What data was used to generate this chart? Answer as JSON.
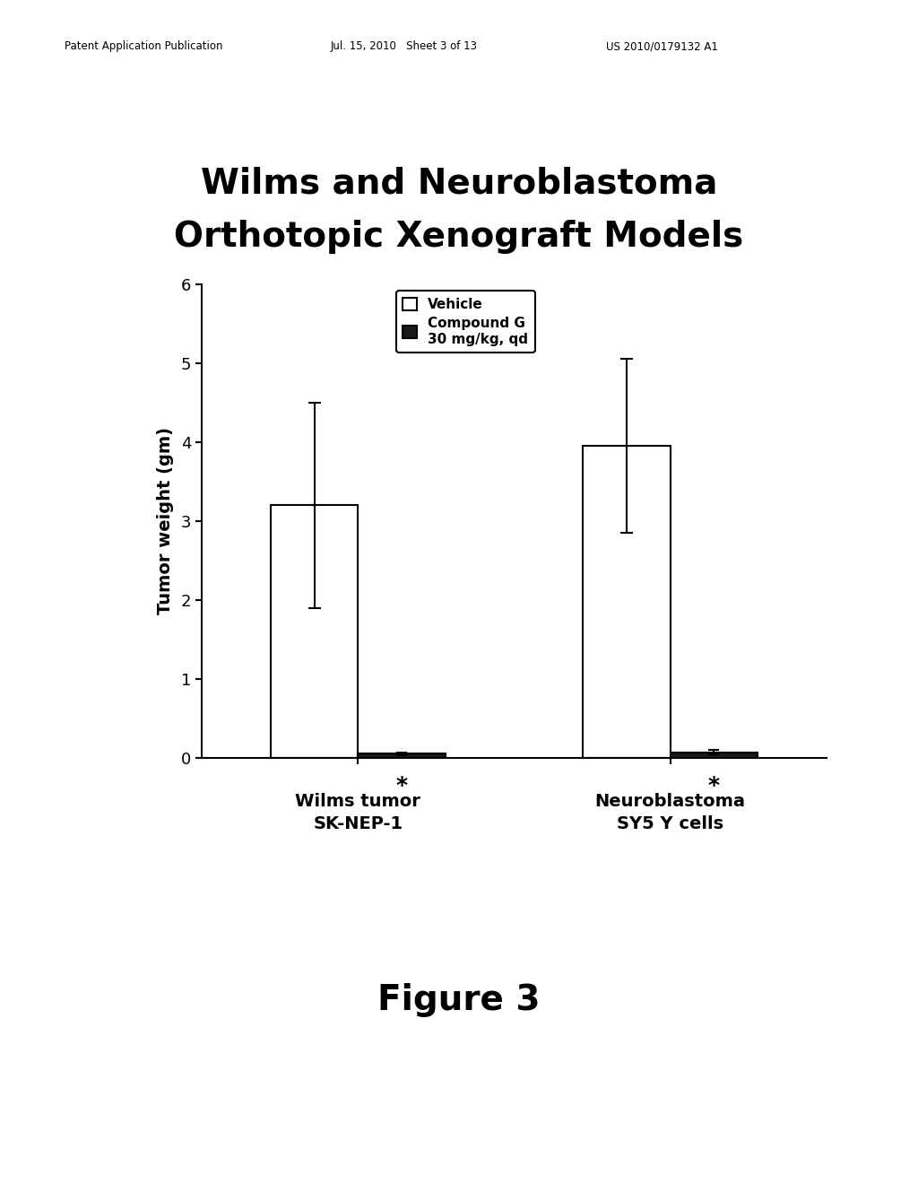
{
  "title_line1": "Wilms and Neuroblastoma",
  "title_line2": "Orthotopic Xenograft Models",
  "ylabel": "Tumor weight (gm)",
  "groups": [
    "Wilms tumor\nSK-NEP-1",
    "Neuroblastoma\nSY5 Y cells"
  ],
  "vehicle_values": [
    3.2,
    3.95
  ],
  "vehicle_errors": [
    1.3,
    1.1
  ],
  "compound_values": [
    0.05,
    0.07
  ],
  "compound_errors": [
    0.02,
    0.03
  ],
  "vehicle_color": "#ffffff",
  "compound_color": "#1a1a1a",
  "bar_edge_color": "#000000",
  "ylim": [
    0,
    6
  ],
  "yticks": [
    0,
    1,
    2,
    3,
    4,
    5,
    6
  ],
  "bar_width": 0.28,
  "legend_vehicle": "Vehicle",
  "legend_compound": "Compound G\n30 mg/kg, qd",
  "figure_label": "Figure 3",
  "header_left": "Patent Application Publication",
  "header_mid": "Jul. 15, 2010   Sheet 3 of 13",
  "header_right": "US 2010/0179132 A1",
  "asterisk_fontsize": 18,
  "background_color": "#ffffff",
  "title_fontsize": 28,
  "figure_label_fontsize": 28,
  "ylabel_fontsize": 14,
  "ytick_fontsize": 13,
  "legend_fontsize": 11,
  "xlabel_fontsize": 14
}
